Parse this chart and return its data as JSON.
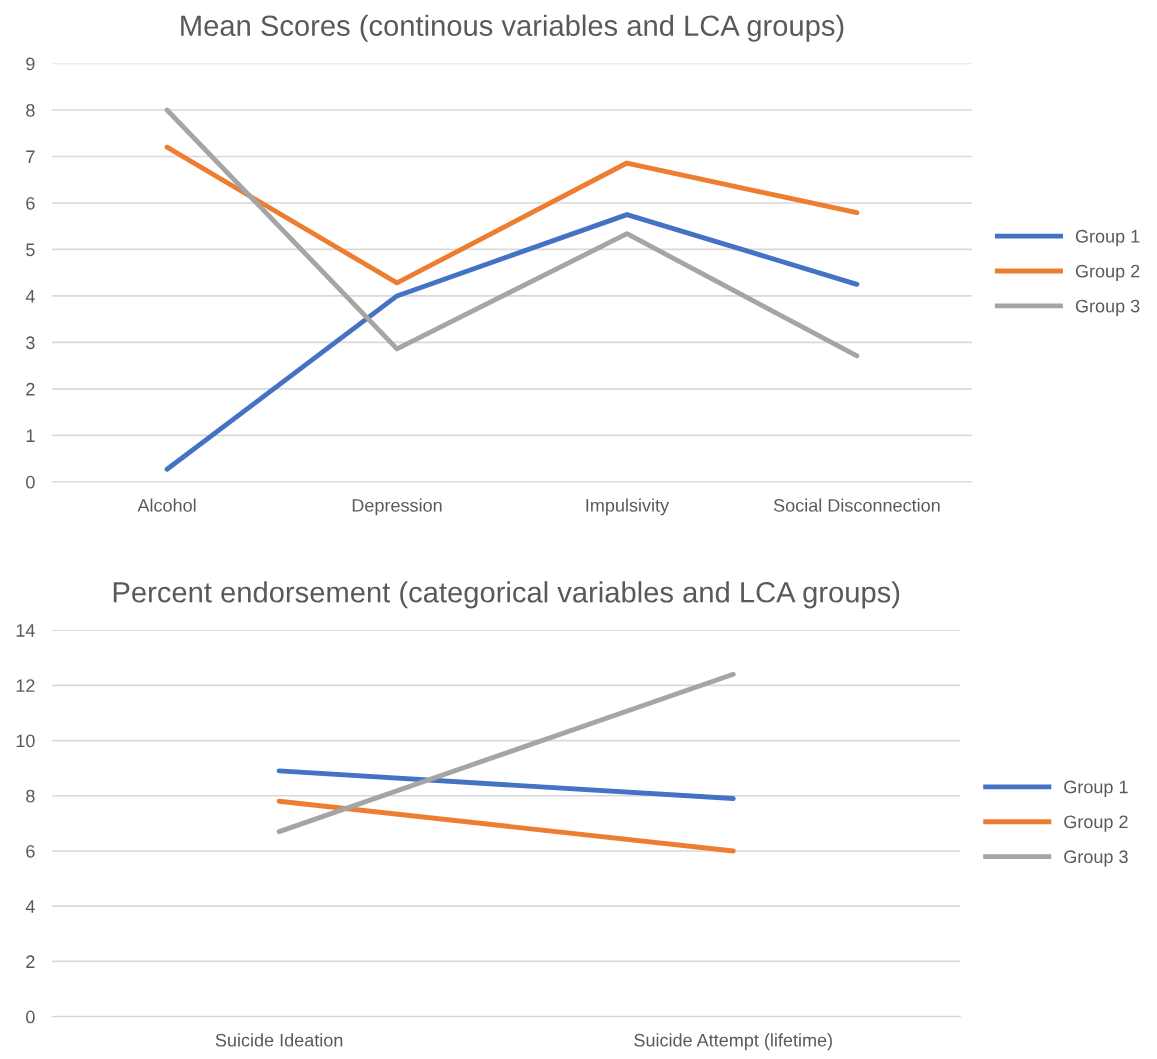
{
  "chart_data": [
    {
      "type": "line",
      "title": "Mean Scores (continous variables and LCA groups)",
      "categories": [
        "Alcohol",
        "Depression",
        "Impulsivity",
        "Social Disconnection"
      ],
      "series": [
        {
          "name": "Group 1",
          "color": "#4472c4",
          "values": [
            0.27,
            4.0,
            5.75,
            4.25
          ]
        },
        {
          "name": "Group 2",
          "color": "#ed7d31",
          "values": [
            7.2,
            4.28,
            6.86,
            5.79
          ]
        },
        {
          "name": "Group 3",
          "color": "#a5a5a5",
          "values": [
            8.0,
            2.86,
            5.34,
            2.71
          ]
        }
      ],
      "ylim": [
        0,
        9
      ],
      "yticks": [
        0,
        1,
        2,
        3,
        4,
        5,
        6,
        7,
        8,
        9
      ],
      "grid": "y",
      "legend": "right",
      "marker": "none",
      "line_style": "solid"
    },
    {
      "type": "line",
      "title": "Percent endorsement (categorical variables and LCA groups)",
      "categories": [
        "Suicide Ideation",
        "Suicide Attempt (lifetime)"
      ],
      "series": [
        {
          "name": "Group 1",
          "color": "#4472c4",
          "values": [
            8.9,
            7.9
          ]
        },
        {
          "name": "Group 2",
          "color": "#ed7d31",
          "values": [
            7.8,
            6.0
          ]
        },
        {
          "name": "Group 3",
          "color": "#a5a5a5",
          "values": [
            6.7,
            12.4
          ]
        }
      ],
      "ylim": [
        0,
        14
      ],
      "yticks": [
        0,
        2,
        4,
        6,
        8,
        10,
        12,
        14
      ],
      "grid": "y",
      "legend": "right",
      "marker": "none",
      "line_style": "solid"
    }
  ]
}
